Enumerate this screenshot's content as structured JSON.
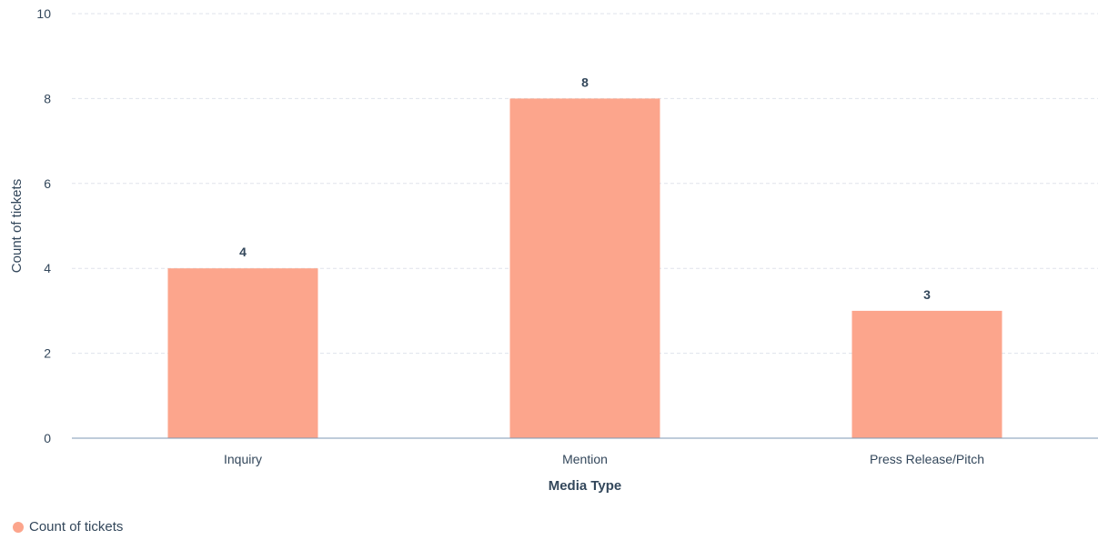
{
  "chart_data": {
    "type": "bar",
    "categories": [
      "Inquiry",
      "Mention",
      "Press Release/Pitch"
    ],
    "series": [
      {
        "name": "Count of tickets",
        "values": [
          4,
          8,
          3
        ],
        "color": "#fca58c"
      }
    ],
    "xlabel": "Media Type",
    "ylabel": "Count of tickets",
    "ylim": [
      0,
      10
    ],
    "yticks": [
      0,
      2,
      4,
      6,
      8,
      10
    ],
    "grid": true,
    "data_labels": true,
    "legend_position": "bottom-left"
  },
  "colors": {
    "axis_text": "#33475b",
    "gridline": "#dfe3eb",
    "baseline": "#7c98b6"
  }
}
